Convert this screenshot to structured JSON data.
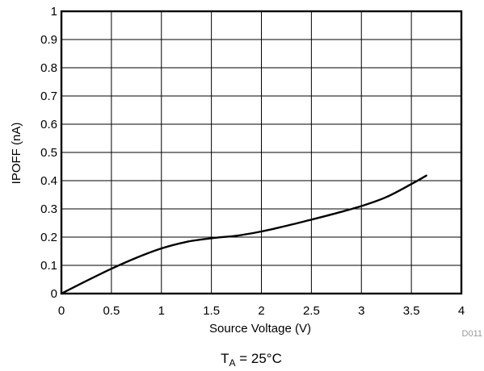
{
  "chart_data": {
    "type": "line",
    "xlabel": "Source Voltage (V)",
    "ylabel": "IPOFF (nA)",
    "xlim": [
      0,
      4
    ],
    "ylim": [
      0,
      1
    ],
    "xticks": [
      "0",
      "0.5",
      "1",
      "1.5",
      "2",
      "2.5",
      "3",
      "3.5",
      "4"
    ],
    "xtick_values": [
      0,
      0.5,
      1,
      1.5,
      2,
      2.5,
      3,
      3.5,
      4
    ],
    "yticks": [
      "0",
      "0.1",
      "0.2",
      "0.3",
      "0.4",
      "0.5",
      "0.6",
      "0.7",
      "0.8",
      "0.9",
      "1"
    ],
    "ytick_values": [
      0,
      0.1,
      0.2,
      0.3,
      0.4,
      0.5,
      0.6,
      0.7,
      0.8,
      0.9,
      1
    ],
    "grid": true,
    "legend": "none",
    "series": [
      {
        "color": "#000000",
        "x": [
          0,
          0.25,
          0.5,
          0.75,
          1.0,
          1.25,
          1.5,
          1.75,
          2.0,
          2.25,
          2.5,
          2.75,
          3.0,
          3.25,
          3.5,
          3.65
        ],
        "y": [
          0,
          0.045,
          0.088,
          0.127,
          0.16,
          0.183,
          0.196,
          0.205,
          0.22,
          0.24,
          0.262,
          0.285,
          0.31,
          0.342,
          0.388,
          0.418
        ]
      }
    ],
    "figure_code": "D011",
    "condition_main": "T",
    "condition_sub": "A",
    "condition_rest": " = 25°C"
  }
}
